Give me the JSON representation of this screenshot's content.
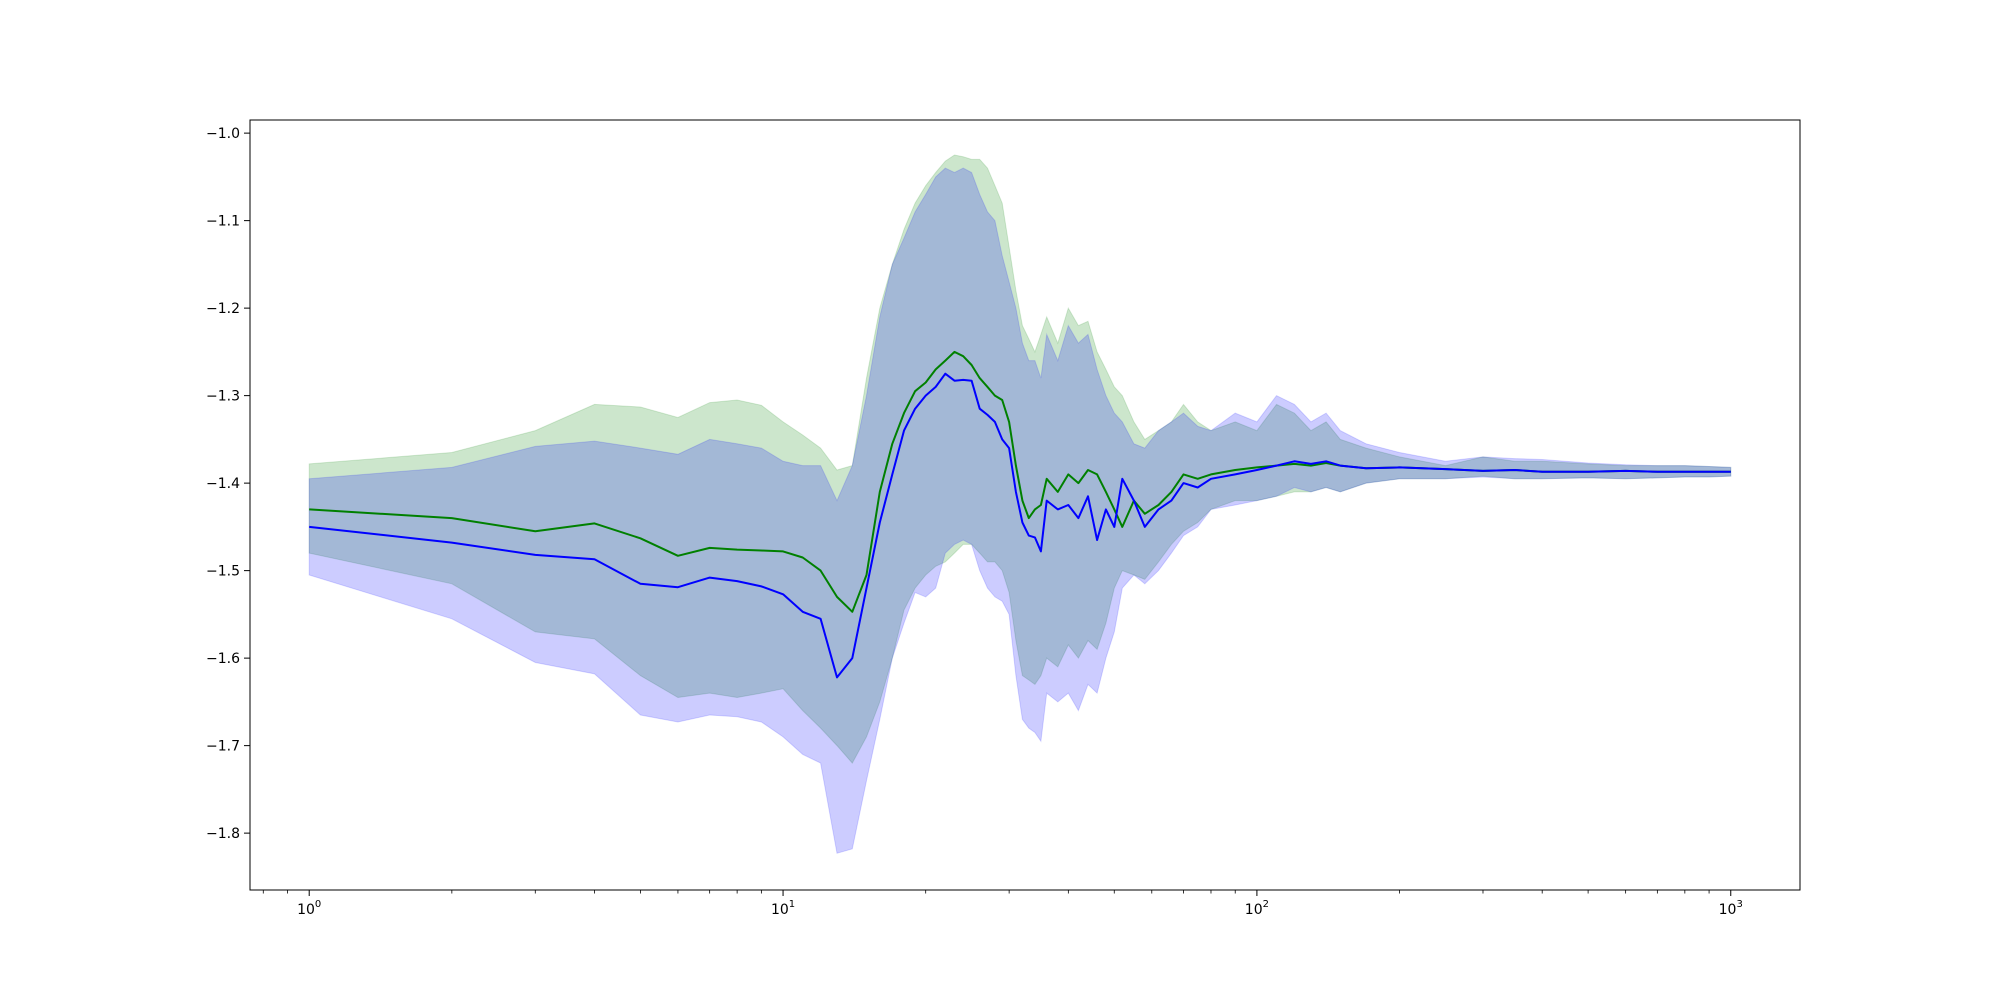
{
  "chart_data": {
    "type": "area",
    "xscale": "log",
    "xlim": [
      0.75,
      1400
    ],
    "ylim": [
      -1.865,
      -0.985
    ],
    "grid": false,
    "colors": {
      "green_line": "#008000",
      "blue_line": "#0000ff",
      "green_fill": "#008000",
      "blue_fill": "#0000ff",
      "green_fill_opacity": 0.2,
      "blue_fill_opacity": 0.2,
      "axis": "#000000"
    },
    "x_ticks": [
      {
        "value": 1,
        "base": "10",
        "exp": "0"
      },
      {
        "value": 10,
        "base": "10",
        "exp": "1"
      },
      {
        "value": 100,
        "base": "10",
        "exp": "2"
      },
      {
        "value": 1000,
        "base": "10",
        "exp": "3"
      }
    ],
    "y_ticks": [
      {
        "value": -1.0,
        "label": "−1.0"
      },
      {
        "value": -1.1,
        "label": "−1.1"
      },
      {
        "value": -1.2,
        "label": "−1.2"
      },
      {
        "value": -1.3,
        "label": "−1.3"
      },
      {
        "value": -1.4,
        "label": "−1.4"
      },
      {
        "value": -1.5,
        "label": "−1.5"
      },
      {
        "value": -1.6,
        "label": "−1.6"
      },
      {
        "value": -1.7,
        "label": "−1.7"
      },
      {
        "value": -1.8,
        "label": "−1.8"
      }
    ],
    "series": [
      {
        "color_key": "green",
        "x": [
          1,
          2,
          3,
          4,
          5,
          6,
          7,
          8,
          9,
          10,
          11,
          12,
          13,
          14,
          15,
          16,
          17,
          18,
          19,
          20,
          21,
          22,
          23,
          24,
          25,
          26,
          27,
          28,
          29,
          30,
          31,
          32,
          33,
          34,
          35,
          36,
          38,
          40,
          42,
          44,
          46,
          48,
          50,
          52,
          55,
          58,
          62,
          66,
          70,
          75,
          80,
          90,
          100,
          110,
          120,
          130,
          140,
          150,
          170,
          200,
          250,
          300,
          350,
          400,
          500,
          600,
          700,
          800,
          900,
          1000
        ],
        "y": [
          -1.43,
          -1.44,
          -1.455,
          -1.446,
          -1.463,
          -1.483,
          -1.474,
          -1.476,
          -1.477,
          -1.478,
          -1.485,
          -1.5,
          -1.53,
          -1.547,
          -1.505,
          -1.41,
          -1.355,
          -1.32,
          -1.295,
          -1.285,
          -1.27,
          -1.26,
          -1.25,
          -1.255,
          -1.265,
          -1.28,
          -1.29,
          -1.3,
          -1.305,
          -1.33,
          -1.38,
          -1.42,
          -1.44,
          -1.43,
          -1.425,
          -1.395,
          -1.41,
          -1.39,
          -1.4,
          -1.385,
          -1.39,
          -1.41,
          -1.43,
          -1.45,
          -1.42,
          -1.435,
          -1.425,
          -1.41,
          -1.39,
          -1.395,
          -1.39,
          -1.385,
          -1.382,
          -1.38,
          -1.378,
          -1.38,
          -1.377,
          -1.38,
          -1.383,
          -1.382,
          -1.384,
          -1.386,
          -1.385,
          -1.387,
          -1.387,
          -1.386,
          -1.387,
          -1.387,
          -1.387,
          -1.387
        ],
        "upper": [
          -1.378,
          -1.365,
          -1.34,
          -1.31,
          -1.313,
          -1.325,
          -1.308,
          -1.305,
          -1.311,
          -1.33,
          -1.345,
          -1.36,
          -1.385,
          -1.38,
          -1.28,
          -1.2,
          -1.15,
          -1.11,
          -1.08,
          -1.06,
          -1.045,
          -1.032,
          -1.025,
          -1.027,
          -1.03,
          -1.03,
          -1.04,
          -1.06,
          -1.08,
          -1.13,
          -1.18,
          -1.22,
          -1.235,
          -1.25,
          -1.23,
          -1.21,
          -1.24,
          -1.2,
          -1.22,
          -1.215,
          -1.25,
          -1.27,
          -1.29,
          -1.3,
          -1.33,
          -1.35,
          -1.34,
          -1.33,
          -1.31,
          -1.33,
          -1.34,
          -1.33,
          -1.34,
          -1.31,
          -1.32,
          -1.34,
          -1.33,
          -1.35,
          -1.36,
          -1.37,
          -1.38,
          -1.37,
          -1.375,
          -1.375,
          -1.378,
          -1.38,
          -1.38,
          -1.38,
          -1.381,
          -1.382
        ],
        "lower": [
          -1.48,
          -1.515,
          -1.57,
          -1.578,
          -1.62,
          -1.645,
          -1.64,
          -1.645,
          -1.64,
          -1.635,
          -1.66,
          -1.68,
          -1.7,
          -1.72,
          -1.69,
          -1.65,
          -1.6,
          -1.545,
          -1.52,
          -1.505,
          -1.495,
          -1.49,
          -1.48,
          -1.47,
          -1.47,
          -1.48,
          -1.49,
          -1.49,
          -1.5,
          -1.525,
          -1.58,
          -1.62,
          -1.625,
          -1.63,
          -1.62,
          -1.6,
          -1.61,
          -1.585,
          -1.6,
          -1.58,
          -1.59,
          -1.56,
          -1.52,
          -1.5,
          -1.505,
          -1.51,
          -1.49,
          -1.47,
          -1.455,
          -1.445,
          -1.43,
          -1.42,
          -1.42,
          -1.415,
          -1.41,
          -1.41,
          -1.405,
          -1.41,
          -1.4,
          -1.395,
          -1.395,
          -1.392,
          -1.395,
          -1.395,
          -1.394,
          -1.395,
          -1.394,
          -1.393,
          -1.393,
          -1.392
        ]
      },
      {
        "color_key": "blue",
        "x": [
          1,
          2,
          3,
          4,
          5,
          6,
          7,
          8,
          9,
          10,
          11,
          12,
          13,
          14,
          15,
          16,
          17,
          18,
          19,
          20,
          21,
          22,
          23,
          24,
          25,
          26,
          27,
          28,
          29,
          30,
          31,
          32,
          33,
          34,
          35,
          36,
          38,
          40,
          42,
          44,
          46,
          48,
          50,
          52,
          55,
          58,
          62,
          66,
          70,
          75,
          80,
          90,
          100,
          110,
          120,
          130,
          140,
          150,
          170,
          200,
          250,
          300,
          350,
          400,
          500,
          600,
          700,
          800,
          900,
          1000
        ],
        "y": [
          -1.45,
          -1.468,
          -1.482,
          -1.487,
          -1.515,
          -1.519,
          -1.508,
          -1.512,
          -1.518,
          -1.527,
          -1.547,
          -1.555,
          -1.622,
          -1.6,
          -1.52,
          -1.445,
          -1.39,
          -1.34,
          -1.315,
          -1.3,
          -1.29,
          -1.275,
          -1.283,
          -1.282,
          -1.283,
          -1.315,
          -1.322,
          -1.33,
          -1.35,
          -1.36,
          -1.41,
          -1.445,
          -1.46,
          -1.462,
          -1.478,
          -1.42,
          -1.43,
          -1.425,
          -1.44,
          -1.415,
          -1.465,
          -1.43,
          -1.45,
          -1.395,
          -1.42,
          -1.45,
          -1.43,
          -1.42,
          -1.4,
          -1.405,
          -1.395,
          -1.39,
          -1.385,
          -1.38,
          -1.375,
          -1.378,
          -1.375,
          -1.38,
          -1.383,
          -1.382,
          -1.384,
          -1.386,
          -1.385,
          -1.387,
          -1.387,
          -1.386,
          -1.387,
          -1.387,
          -1.387,
          -1.387
        ],
        "upper": [
          -1.395,
          -1.382,
          -1.358,
          -1.352,
          -1.36,
          -1.367,
          -1.35,
          -1.355,
          -1.36,
          -1.375,
          -1.38,
          -1.38,
          -1.42,
          -1.38,
          -1.3,
          -1.21,
          -1.15,
          -1.12,
          -1.09,
          -1.07,
          -1.05,
          -1.04,
          -1.045,
          -1.04,
          -1.045,
          -1.07,
          -1.09,
          -1.1,
          -1.14,
          -1.17,
          -1.2,
          -1.24,
          -1.26,
          -1.26,
          -1.28,
          -1.23,
          -1.26,
          -1.22,
          -1.24,
          -1.23,
          -1.27,
          -1.3,
          -1.32,
          -1.33,
          -1.355,
          -1.36,
          -1.34,
          -1.33,
          -1.32,
          -1.335,
          -1.34,
          -1.32,
          -1.33,
          -1.3,
          -1.31,
          -1.33,
          -1.32,
          -1.34,
          -1.355,
          -1.365,
          -1.375,
          -1.37,
          -1.372,
          -1.373,
          -1.377,
          -1.379,
          -1.38,
          -1.38,
          -1.381,
          -1.382
        ],
        "lower": [
          -1.505,
          -1.555,
          -1.605,
          -1.618,
          -1.665,
          -1.673,
          -1.665,
          -1.667,
          -1.673,
          -1.69,
          -1.71,
          -1.72,
          -1.823,
          -1.818,
          -1.74,
          -1.67,
          -1.6,
          -1.56,
          -1.525,
          -1.53,
          -1.52,
          -1.48,
          -1.47,
          -1.465,
          -1.47,
          -1.5,
          -1.52,
          -1.53,
          -1.535,
          -1.55,
          -1.62,
          -1.67,
          -1.68,
          -1.685,
          -1.695,
          -1.64,
          -1.65,
          -1.64,
          -1.66,
          -1.63,
          -1.64,
          -1.6,
          -1.57,
          -1.52,
          -1.505,
          -1.515,
          -1.5,
          -1.48,
          -1.46,
          -1.45,
          -1.43,
          -1.425,
          -1.42,
          -1.415,
          -1.405,
          -1.41,
          -1.405,
          -1.41,
          -1.4,
          -1.395,
          -1.395,
          -1.393,
          -1.395,
          -1.395,
          -1.394,
          -1.395,
          -1.394,
          -1.393,
          -1.393,
          -1.392
        ]
      }
    ]
  }
}
